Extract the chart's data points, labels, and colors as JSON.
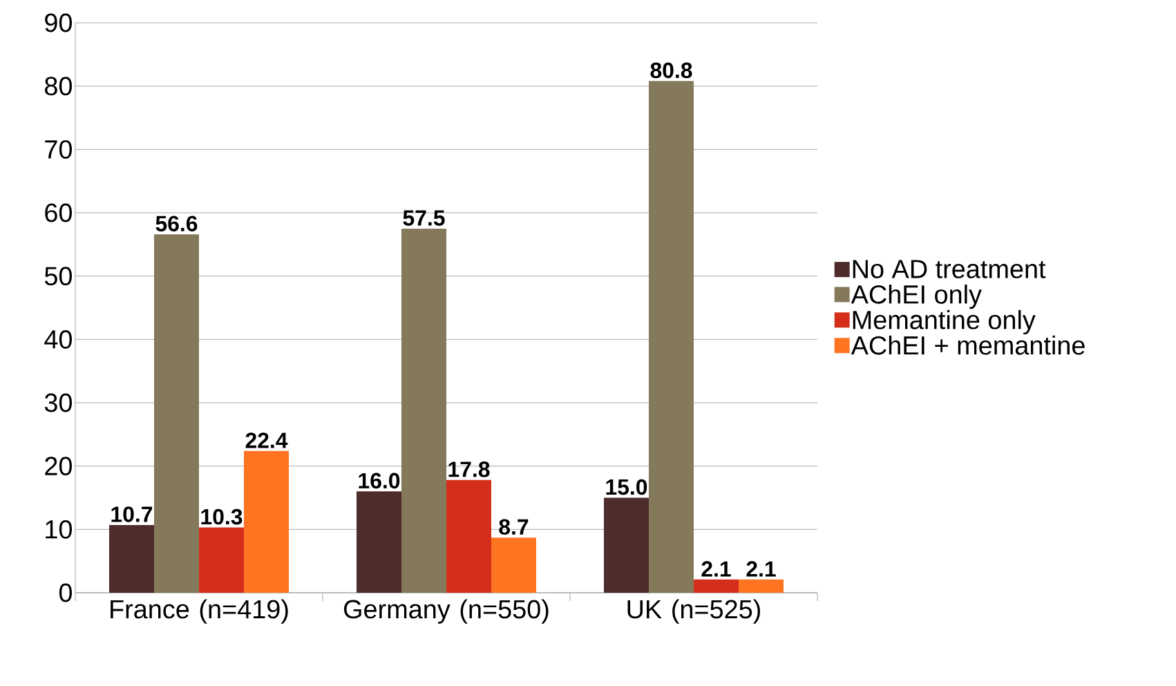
{
  "chart_data": {
    "type": "bar",
    "categories": [
      "France (n=419)",
      "Germany (n=550)",
      "UK (n=525)"
    ],
    "series": [
      {
        "name": "No AD treatment",
        "color": "#4e2c2b",
        "values": [
          10.7,
          16.0,
          15.0
        ],
        "value_labels": [
          "10.7",
          "16.0",
          "15.0"
        ]
      },
      {
        "name": "AChEI only",
        "color": "#847a5b",
        "values": [
          56.6,
          57.5,
          80.8
        ],
        "value_labels": [
          "56.6",
          "57.5",
          "80.8"
        ]
      },
      {
        "name": "Memantine only",
        "color": "#d52f1b",
        "values": [
          10.3,
          17.8,
          2.1
        ],
        "value_labels": [
          "10.3",
          "17.8",
          "2.1"
        ]
      },
      {
        "name": "AChEI + memantine",
        "color": "#ff7421",
        "values": [
          22.4,
          8.7,
          2.1
        ],
        "value_labels": [
          "22.4",
          "8.7",
          "2.1"
        ]
      }
    ],
    "ylim": [
      0,
      90
    ],
    "yticks": [
      0,
      10,
      20,
      30,
      40,
      50,
      60,
      70,
      80,
      90
    ],
    "grid": "y",
    "legend": "right"
  }
}
